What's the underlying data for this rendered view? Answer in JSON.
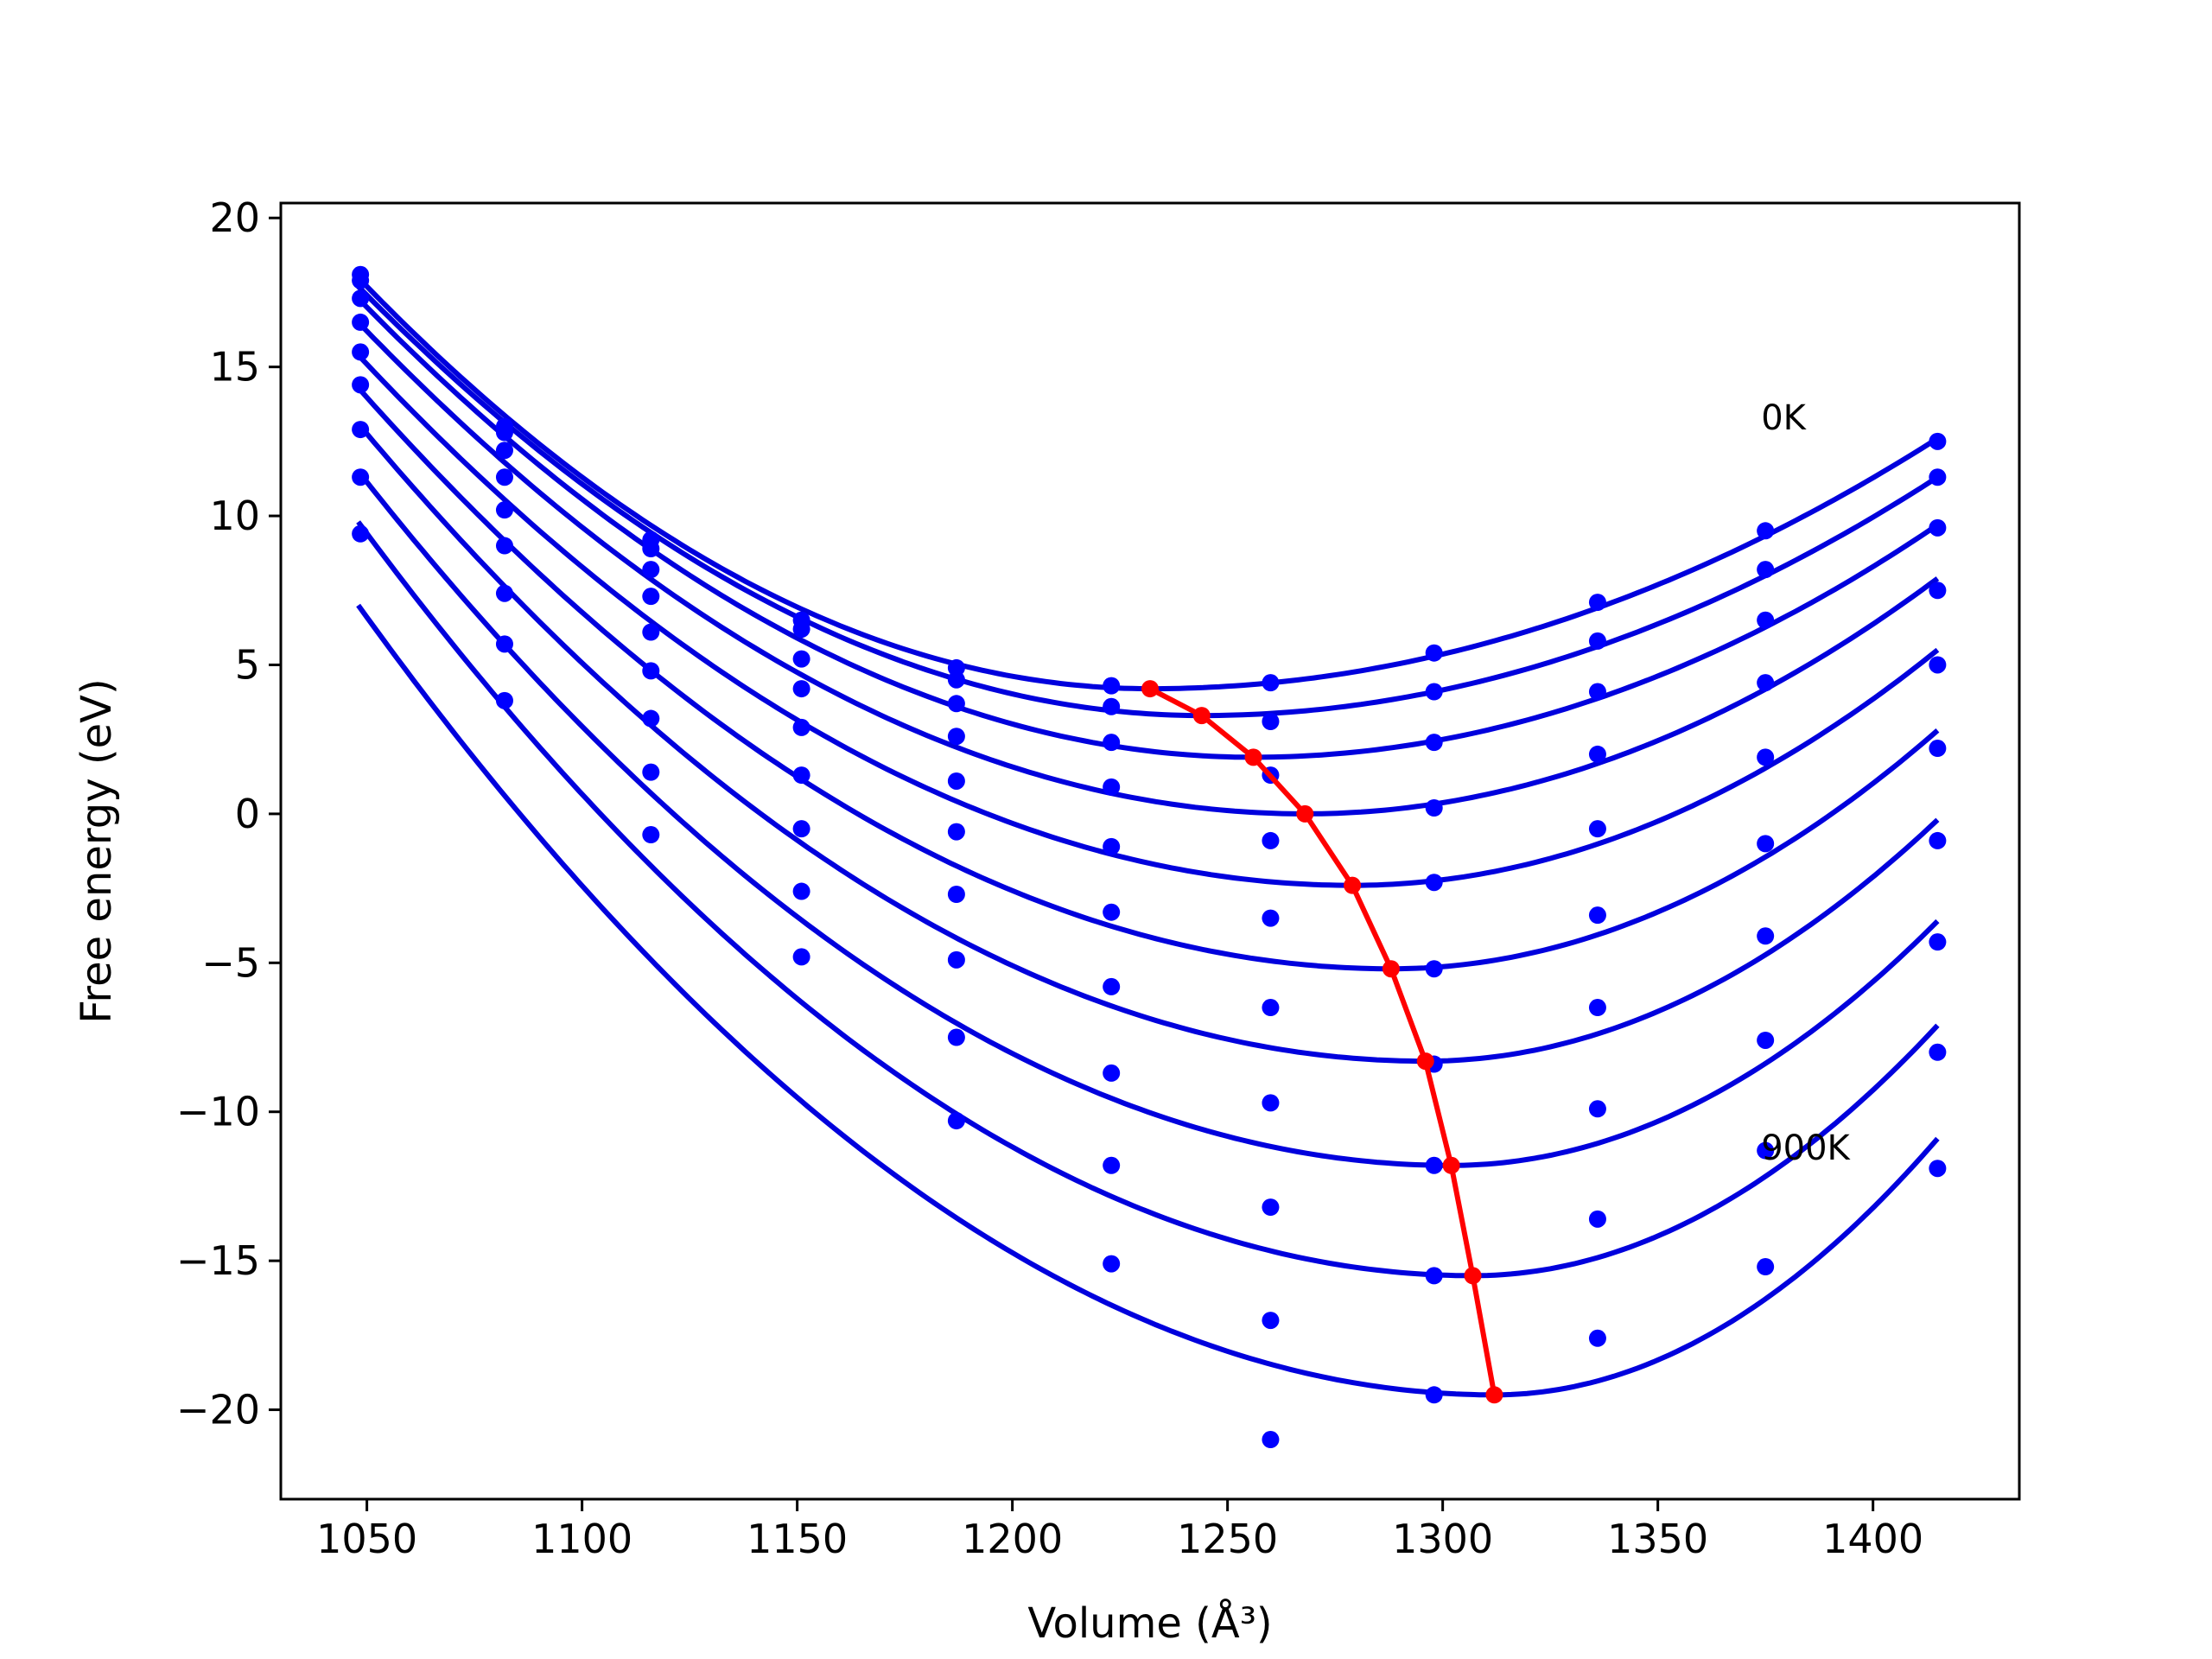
{
  "chart_data": {
    "type": "line",
    "xlabel": "Volume (Å³)",
    "ylabel": "Free energy (eV)",
    "xlim": [
      1030,
      1434
    ],
    "ylim": [
      -23,
      20.5
    ],
    "x_ticks": [
      1050,
      1100,
      1150,
      1200,
      1250,
      1300,
      1350,
      1400
    ],
    "x_tick_labels": [
      "1050",
      "1100",
      "1150",
      "1200",
      "1250",
      "1300",
      "1350",
      "1400"
    ],
    "y_ticks": [
      20,
      15,
      10,
      5,
      0,
      -5,
      -10,
      -15,
      -20
    ],
    "y_tick_labels": [
      "20",
      "15",
      "10",
      "5",
      "0",
      "−5",
      "−10",
      "−15",
      "−20"
    ],
    "grid": false,
    "annotations": [
      {
        "text": "0K",
        "x": 1374,
        "y": 12.9
      },
      {
        "text": "900K",
        "x": 1374,
        "y": -11.6
      }
    ],
    "colors": {
      "points": "#0000ff",
      "fits": "#0000dd",
      "minima": "#ff0000"
    },
    "data_x": [
      1048.5,
      1082,
      1116,
      1151,
      1187,
      1223,
      1260,
      1298,
      1336,
      1375,
      1415
    ],
    "series": [
      {
        "kind": "points",
        "y": [
          18.1,
          13.0,
          9.2,
          6.5,
          4.9,
          4.3,
          4.4,
          5.4,
          7.1,
          9.5,
          12.5
        ]
      },
      {
        "kind": "points",
        "y": [
          17.9,
          12.8,
          8.9,
          6.2,
          4.5,
          3.6,
          3.1,
          4.1,
          5.8,
          8.2,
          11.3
        ]
      },
      {
        "kind": "points",
        "y": [
          17.3,
          12.2,
          8.2,
          5.2,
          3.7,
          2.4,
          1.3,
          2.4,
          4.1,
          6.5,
          9.6
        ]
      },
      {
        "kind": "points",
        "y": [
          16.5,
          11.3,
          7.3,
          4.2,
          2.6,
          0.9,
          -0.9,
          0.2,
          2.0,
          4.4,
          7.5
        ]
      },
      {
        "kind": "points",
        "y": [
          15.5,
          10.2,
          6.1,
          2.9,
          1.1,
          -1.1,
          -3.5,
          -2.3,
          -0.5,
          1.9,
          5.0
        ]
      },
      {
        "kind": "points",
        "y": [
          14.4,
          9.0,
          4.8,
          1.3,
          -0.6,
          -3.3,
          -6.5,
          -5.2,
          -3.4,
          -1.0,
          2.2
        ]
      },
      {
        "kind": "points",
        "y": [
          12.9,
          7.4,
          3.2,
          -0.5,
          -2.7,
          -5.8,
          -9.7,
          -8.4,
          -6.5,
          -4.1,
          -0.9
        ]
      },
      {
        "kind": "points",
        "y": [
          11.3,
          5.7,
          1.4,
          -2.6,
          -4.9,
          -8.7,
          -13.2,
          -11.8,
          -9.9,
          -7.6,
          -4.3
        ]
      },
      {
        "kind": "points",
        "y": [
          9.4,
          3.8,
          -0.7,
          -4.8,
          -7.5,
          -11.8,
          -17.0,
          -15.5,
          -13.6,
          -11.3,
          -8.0
        ]
      },
      {
        "kind": "points",
        "y": [
          null,
          null,
          null,
          null,
          -10.3,
          -15.1,
          -21.0,
          -19.5,
          -17.6,
          -15.2,
          -11.9
        ]
      },
      {
        "kind": "fit",
        "vmin": 1232,
        "fmin": 4.2,
        "left": [
          1048,
          18.0
        ],
        "right": [
          1415,
          12.6
        ]
      },
      {
        "kind": "fit",
        "vmin": 1244,
        "fmin": 3.3,
        "left": [
          1048,
          17.7
        ],
        "right": [
          1415,
          11.3
        ]
      },
      {
        "kind": "fit",
        "vmin": 1256,
        "fmin": 1.9,
        "left": [
          1048,
          17.3
        ],
        "right": [
          1415,
          9.7
        ]
      },
      {
        "kind": "fit",
        "vmin": 1268,
        "fmin": 0.0,
        "left": [
          1048,
          16.5
        ],
        "right": [
          1415,
          7.9
        ]
      },
      {
        "kind": "fit",
        "vmin": 1279,
        "fmin": -2.4,
        "left": [
          1048,
          15.4
        ],
        "right": [
          1415,
          5.5
        ]
      },
      {
        "kind": "fit",
        "vmin": 1288,
        "fmin": -5.2,
        "left": [
          1048,
          14.3
        ],
        "right": [
          1415,
          2.8
        ]
      },
      {
        "kind": "fit",
        "vmin": 1296,
        "fmin": -8.3,
        "left": [
          1048,
          13.1
        ],
        "right": [
          1415,
          -0.2
        ]
      },
      {
        "kind": "fit",
        "vmin": 1302,
        "fmin": -11.8,
        "left": [
          1048,
          11.5
        ],
        "right": [
          1415,
          -3.6
        ]
      },
      {
        "kind": "fit",
        "vmin": 1307,
        "fmin": -15.5,
        "left": [
          1048,
          9.8
        ],
        "right": [
          1415,
          -7.1
        ]
      },
      {
        "kind": "fit",
        "vmin": 1312,
        "fmin": -19.5,
        "left": [
          1048,
          7.0
        ],
        "right": [
          1415,
          -10.9
        ]
      },
      {
        "kind": "minima",
        "x": [
          1232,
          1244,
          1256,
          1268,
          1279,
          1288,
          1296,
          1302,
          1307,
          1312
        ],
        "y": [
          4.2,
          3.3,
          1.9,
          0.0,
          -2.4,
          -5.2,
          -8.3,
          -11.8,
          -15.5,
          -19.5
        ]
      }
    ]
  }
}
